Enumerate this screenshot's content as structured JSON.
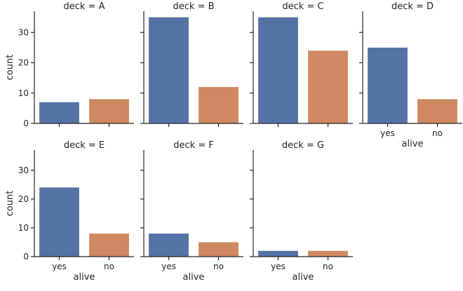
{
  "chart_data": {
    "type": "bar",
    "categories": [
      "yes",
      "no"
    ],
    "colors": [
      "#5572a6",
      "#cf8862"
    ],
    "ylabel": "count",
    "xlabel": "alive",
    "ylim": [
      0,
      37
    ],
    "yticks": [
      0,
      10,
      20,
      30
    ],
    "panels": [
      {
        "title": "deck = A",
        "values": [
          7,
          8
        ]
      },
      {
        "title": "deck = B",
        "values": [
          35,
          12
        ]
      },
      {
        "title": "deck = C",
        "values": [
          35,
          24
        ]
      },
      {
        "title": "deck = D",
        "values": [
          25,
          8
        ]
      },
      {
        "title": "deck = E",
        "values": [
          24,
          8
        ]
      },
      {
        "title": "deck = F",
        "values": [
          8,
          5
        ]
      },
      {
        "title": "deck = G",
        "values": [
          2,
          2
        ]
      }
    ]
  }
}
